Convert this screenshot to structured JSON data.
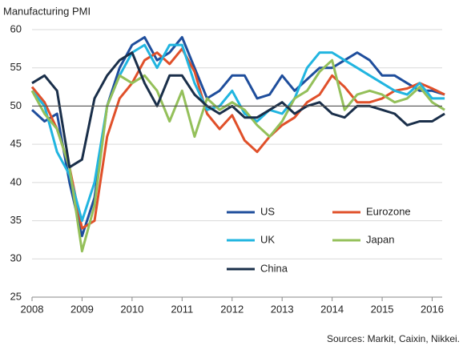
{
  "chart_data": {
    "type": "line",
    "title": "Manufacturing  PMI",
    "source": "Sources: Markit, Caixin, Nikkei.",
    "x": [
      2008,
      2008.25,
      2008.5,
      2008.75,
      2009,
      2009.25,
      2009.5,
      2009.75,
      2010,
      2010.25,
      2010.5,
      2010.75,
      2011,
      2011.25,
      2011.5,
      2011.75,
      2012,
      2012.25,
      2012.5,
      2012.75,
      2013,
      2013.25,
      2013.5,
      2013.75,
      2014,
      2014.25,
      2014.5,
      2014.75,
      2015,
      2015.25,
      2015.5,
      2015.75,
      2016,
      2016.25
    ],
    "xlim": [
      2008,
      2016.2
    ],
    "xticks": [
      2008,
      2009,
      2010,
      2011,
      2012,
      2013,
      2014,
      2015,
      2016
    ],
    "ylim": [
      25,
      60
    ],
    "yticks": [
      25,
      30,
      35,
      40,
      45,
      50,
      55,
      60
    ],
    "grid": true,
    "reference_line": 50,
    "series": [
      {
        "name": "US",
        "color": "#1f4e9c",
        "values": [
          49.5,
          48,
          49,
          40,
          33,
          38,
          50,
          55,
          58,
          59,
          56,
          57,
          59,
          55,
          51,
          52,
          54,
          54,
          51,
          51.5,
          54,
          52,
          53.5,
          55,
          55,
          56,
          57,
          56,
          54,
          54,
          53,
          52,
          52,
          51.5
        ]
      },
      {
        "name": "Eurozone",
        "color": "#e0502a",
        "values": [
          52.5,
          50.5,
          47,
          42,
          34,
          35,
          46,
          51,
          53,
          56,
          57,
          55.5,
          57.5,
          54.5,
          49,
          47,
          48.8,
          45.5,
          44,
          46,
          47.5,
          48.5,
          50.5,
          51.5,
          54,
          52.5,
          50.5,
          50.5,
          51,
          52,
          52.3,
          53,
          52.3,
          51.5
        ]
      },
      {
        "name": "UK",
        "color": "#21b5e0",
        "values": [
          52,
          50,
          44,
          41,
          35,
          40,
          50,
          54,
          57,
          58,
          55,
          58,
          58,
          53,
          49.5,
          50,
          52,
          49,
          48,
          49.5,
          49,
          51,
          55,
          57,
          57,
          56,
          55,
          54,
          53,
          52,
          51.5,
          53,
          51,
          51
        ]
      },
      {
        "name": "Japan",
        "color": "#94c05a",
        "values": [
          52,
          49,
          47,
          42,
          31,
          37,
          50,
          54,
          53,
          54,
          52,
          48,
          52,
          46,
          51,
          49.5,
          50.5,
          49.5,
          47.5,
          46,
          48,
          51,
          52,
          54.5,
          56,
          49.5,
          51.5,
          52,
          51.5,
          50.5,
          51,
          52.5,
          50.5,
          49.5
        ]
      },
      {
        "name": "China",
        "color": "#1a2f4a",
        "values": [
          53,
          54,
          52,
          42,
          43,
          51,
          54,
          56,
          57,
          53,
          50,
          54,
          54,
          51.5,
          50,
          49,
          50,
          48.5,
          48.5,
          49.5,
          50.5,
          49,
          50,
          50.5,
          49,
          48.5,
          50,
          50,
          49.5,
          49,
          47.5,
          48,
          48,
          49
        ]
      }
    ]
  }
}
